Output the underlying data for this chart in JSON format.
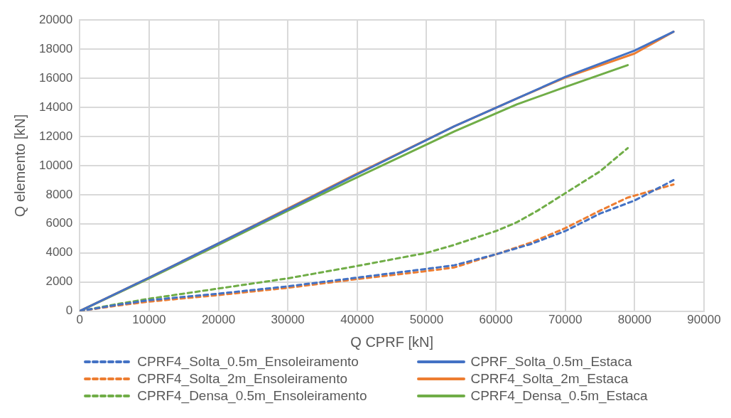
{
  "chart_data": {
    "type": "line",
    "xlabel": "Q CPRF [kN]",
    "ylabel": "Q elemento [kN]",
    "xlim": [
      0,
      90000
    ],
    "xticks": [
      0,
      10000,
      20000,
      30000,
      40000,
      50000,
      60000,
      70000,
      80000,
      90000
    ],
    "ylim": [
      0,
      20000
    ],
    "yticks": [
      0,
      2000,
      4000,
      6000,
      8000,
      10000,
      12000,
      14000,
      16000,
      18000,
      20000
    ],
    "grid": true,
    "legend": "bottom",
    "marker": "none",
    "series": [
      {
        "name": "CPRF4_Solta_0.5m_Ensoleiramento",
        "color": "#4472c4",
        "line_style": "dashed",
        "x": [
          0,
          5000,
          10000,
          20000,
          30000,
          40000,
          50000,
          54000,
          60000,
          65000,
          70000,
          75000,
          80000,
          85600
        ],
        "values": [
          0,
          400,
          750,
          1200,
          1700,
          2300,
          2900,
          3150,
          3900,
          4600,
          5500,
          6700,
          7600,
          9000
        ]
      },
      {
        "name": "CPRF_Solta_0.5m_Estaca",
        "color": "#4472c4",
        "line_style": "solid",
        "x": [
          0,
          10000,
          20000,
          30000,
          40000,
          54000,
          63000,
          70000,
          80000,
          85600
        ],
        "values": [
          0,
          2300,
          4650,
          7000,
          9400,
          12700,
          14600,
          16100,
          17900,
          19200
        ]
      },
      {
        "name": "CPRF4_Solta_2m_Ensoleiramento",
        "color": "#ed7d31",
        "line_style": "dashed",
        "x": [
          0,
          5000,
          10000,
          20000,
          30000,
          40000,
          50000,
          54000,
          60000,
          65000,
          70000,
          75000,
          79000,
          85600
        ],
        "values": [
          0,
          350,
          650,
          1100,
          1600,
          2200,
          2750,
          3000,
          3900,
          4700,
          5700,
          6900,
          7800,
          8700
        ]
      },
      {
        "name": "CPRF4_Solta_2m_Estaca",
        "color": "#ed7d31",
        "line_style": "solid",
        "x": [
          0,
          10000,
          20000,
          30000,
          40000,
          54000,
          63000,
          70000,
          80000,
          85600
        ],
        "values": [
          0,
          2300,
          4650,
          7050,
          9450,
          12700,
          14600,
          16050,
          17700,
          19200
        ]
      },
      {
        "name": "CPRF4_Densa_0.5m_Ensoleiramento",
        "color": "#70ad47",
        "line_style": "dashed",
        "x": [
          0,
          5000,
          10000,
          20000,
          30000,
          40000,
          50000,
          54000,
          60000,
          63000,
          66000,
          70000,
          75000,
          79000
        ],
        "values": [
          0,
          450,
          850,
          1550,
          2250,
          3100,
          4000,
          4550,
          5500,
          6100,
          6900,
          8100,
          9600,
          11200
        ]
      },
      {
        "name": "CPRF4_Densa_0.5m_Estaca",
        "color": "#70ad47",
        "line_style": "solid",
        "x": [
          0,
          10000,
          20000,
          30000,
          40000,
          54000,
          63000,
          70000,
          79000
        ],
        "values": [
          0,
          2250,
          4550,
          6900,
          9200,
          12350,
          14200,
          15400,
          16900
        ]
      }
    ]
  }
}
